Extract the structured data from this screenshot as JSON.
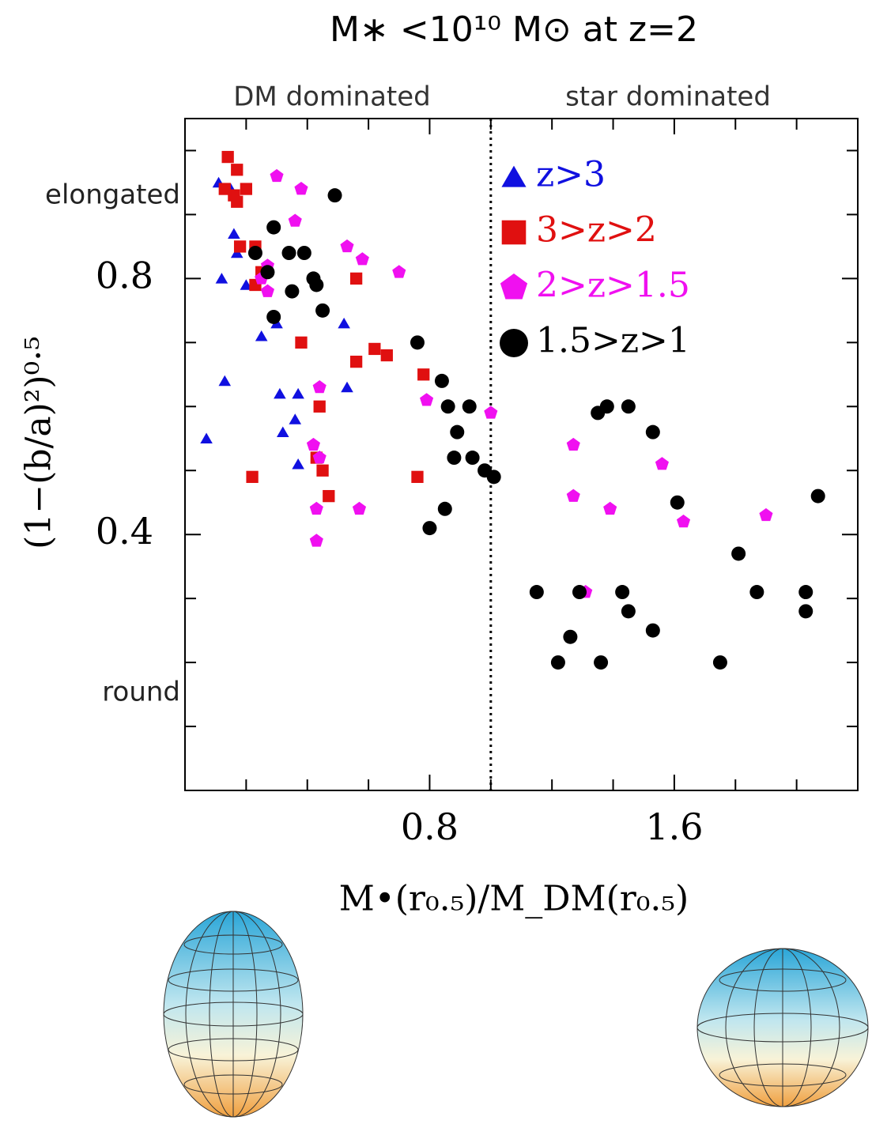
{
  "chart_data": {
    "type": "scatter",
    "title": "M∗ <10¹⁰ M⊙ at z=2",
    "xlabel": "M•(r₀.₅)/M_DM(r₀.₅)",
    "ylabel": "(1−(b/a)²)⁰·⁵",
    "region_labels": [
      "DM dominated",
      "star dominated"
    ],
    "y_annotations": [
      "elongated",
      "round"
    ],
    "divider_x": 1.0,
    "xlim": [
      0,
      2.2
    ],
    "ylim": [
      0,
      1.05
    ],
    "xticks": [
      0.8,
      1.6
    ],
    "yticks": [
      0.4,
      0.8
    ],
    "xminor": [
      0.2,
      0.4,
      0.6,
      1.0,
      1.2,
      1.4,
      1.8,
      2.0
    ],
    "yminor": [
      0.1,
      0.2,
      0.3,
      0.5,
      0.6,
      0.7,
      0.9,
      1.0
    ],
    "legend": "upper right",
    "series": [
      {
        "name": "z>3",
        "color": "#1010e0",
        "marker": "triangle",
        "x": [
          0.11,
          0.15,
          0.16,
          0.12,
          0.17,
          0.2,
          0.25,
          0.3,
          0.31,
          0.37,
          0.13,
          0.07,
          0.32,
          0.36,
          0.37,
          0.53,
          0.52
        ],
        "values": [
          0.95,
          0.94,
          0.87,
          0.8,
          0.84,
          0.79,
          0.71,
          0.73,
          0.62,
          0.62,
          0.64,
          0.55,
          0.56,
          0.58,
          0.51,
          0.63,
          0.73
        ]
      },
      {
        "name": "3>z>2",
        "color": "#e01010",
        "marker": "square",
        "x": [
          0.14,
          0.17,
          0.13,
          0.16,
          0.2,
          0.17,
          0.18,
          0.23,
          0.25,
          0.23,
          0.56,
          0.38,
          0.62,
          0.66,
          0.56,
          0.78,
          0.44,
          0.43,
          0.45,
          0.47,
          0.22,
          0.76
        ],
        "values": [
          0.99,
          0.97,
          0.94,
          0.93,
          0.94,
          0.92,
          0.85,
          0.85,
          0.81,
          0.79,
          0.8,
          0.7,
          0.69,
          0.68,
          0.67,
          0.65,
          0.6,
          0.52,
          0.5,
          0.46,
          0.49,
          0.49
        ]
      },
      {
        "name": "2>z>1.5",
        "color": "#f010f0",
        "marker": "pentagon",
        "x": [
          0.3,
          0.38,
          0.36,
          0.53,
          0.58,
          0.7,
          0.27,
          0.25,
          0.27,
          0.44,
          0.79,
          1.0,
          0.42,
          0.44,
          0.43,
          0.57,
          0.43,
          1.27,
          1.56,
          1.27,
          1.39,
          1.63,
          1.9,
          1.31
        ],
        "values": [
          0.96,
          0.94,
          0.89,
          0.85,
          0.83,
          0.81,
          0.82,
          0.8,
          0.78,
          0.63,
          0.61,
          0.59,
          0.54,
          0.52,
          0.44,
          0.44,
          0.39,
          0.54,
          0.51,
          0.46,
          0.44,
          0.42,
          0.43,
          0.31
        ]
      },
      {
        "name": "1.5>z>1",
        "color": "#000000",
        "marker": "circle",
        "x": [
          0.49,
          0.29,
          0.23,
          0.34,
          0.39,
          0.27,
          0.42,
          0.43,
          0.35,
          0.29,
          0.45,
          0.76,
          0.84,
          0.86,
          0.93,
          0.89,
          0.88,
          0.94,
          0.98,
          1.01,
          0.85,
          0.8,
          1.15,
          1.22,
          1.26,
          1.29,
          1.36,
          1.43,
          1.45,
          1.53,
          1.35,
          1.38,
          1.45,
          1.53,
          1.61,
          1.75,
          1.81,
          1.87,
          2.03,
          2.03,
          2.07
        ],
        "values": [
          0.93,
          0.88,
          0.84,
          0.84,
          0.84,
          0.81,
          0.8,
          0.79,
          0.78,
          0.74,
          0.75,
          0.7,
          0.64,
          0.6,
          0.6,
          0.56,
          0.52,
          0.52,
          0.5,
          0.49,
          0.44,
          0.41,
          0.31,
          0.2,
          0.24,
          0.31,
          0.2,
          0.31,
          0.28,
          0.25,
          0.59,
          0.6,
          0.6,
          0.56,
          0.45,
          0.2,
          0.37,
          0.31,
          0.31,
          0.28,
          0.46
        ]
      }
    ]
  }
}
